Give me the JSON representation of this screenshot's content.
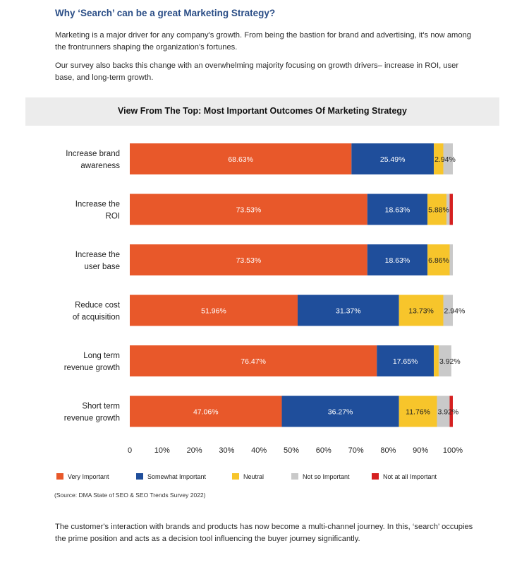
{
  "article": {
    "heading": "Why ‘Search’ can be a great Marketing Strategy?",
    "paragraph1": "Marketing is a major driver for any company's growth. From being the bastion for brand and advertising, it's now among the frontrunners shaping the organization's fortunes.",
    "paragraph2": "Our survey also backs this change with an overwhelming majority focusing on growth drivers– increase in ROI, user base, and long-term growth.",
    "source": "(Source: DMA State of SEO & SEO Trends Survey 2022)",
    "footer": "The customer's interaction with brands and products has now become a multi-channel journey. In this, ‘search’ occupies the prime position and acts as a decision tool influencing the buyer journey significantly."
  },
  "chart_data": {
    "type": "bar",
    "orientation": "horizontal",
    "stacked": true,
    "title": "View From The Top: Most Important Outcomes Of Marketing Strategy",
    "categories": [
      [
        "Increase brand",
        "awareness"
      ],
      [
        "Increase the",
        "ROI"
      ],
      [
        "Increase the",
        "user base"
      ],
      [
        "Reduce cost",
        "of acquisition"
      ],
      [
        "Long term",
        "revenue growth"
      ],
      [
        "Short term",
        "revenue growth"
      ]
    ],
    "series": [
      {
        "name": "Very Important",
        "color": "#e8582a",
        "values": [
          68.63,
          73.53,
          73.53,
          51.96,
          76.47,
          47.06
        ],
        "labels": [
          "68.63%",
          "73.53%",
          "73.53%",
          "51.96%",
          "76.47%",
          "47.06%"
        ]
      },
      {
        "name": "Somewhat Important",
        "color": "#1f4e9b",
        "values": [
          25.49,
          18.63,
          18.63,
          31.37,
          17.65,
          36.27
        ],
        "labels": [
          "25.49%",
          "18.63%",
          "18.63%",
          "31.37%",
          "17.65%",
          "36.27%"
        ]
      },
      {
        "name": "Neutral",
        "color": "#f7c52b",
        "values": [
          2.94,
          5.88,
          6.86,
          13.73,
          1.5,
          11.76
        ],
        "labels": [
          "2.94%",
          "5.88%",
          "6.86%",
          "13.73%",
          "",
          "11.76%"
        ]
      },
      {
        "name": "Not so Important",
        "color": "#c9c9c9",
        "values": [
          2.94,
          0.98,
          0.98,
          2.94,
          3.92,
          3.92
        ],
        "labels": [
          "",
          "",
          "",
          "2.94%",
          "3.92%",
          "3.92%"
        ]
      },
      {
        "name": "Not at all Important",
        "color": "#d52020",
        "values": [
          0,
          0.98,
          0,
          0,
          0,
          0.99
        ],
        "labels": [
          "",
          "",
          "",
          "",
          "",
          ""
        ]
      }
    ],
    "xticks": [
      "0",
      "10%",
      "20%",
      "30%",
      "40%",
      "50%",
      "60%",
      "70%",
      "80%",
      "90%",
      "100%"
    ],
    "xlim": [
      0,
      100
    ],
    "grid": false,
    "legend": "bottom"
  }
}
